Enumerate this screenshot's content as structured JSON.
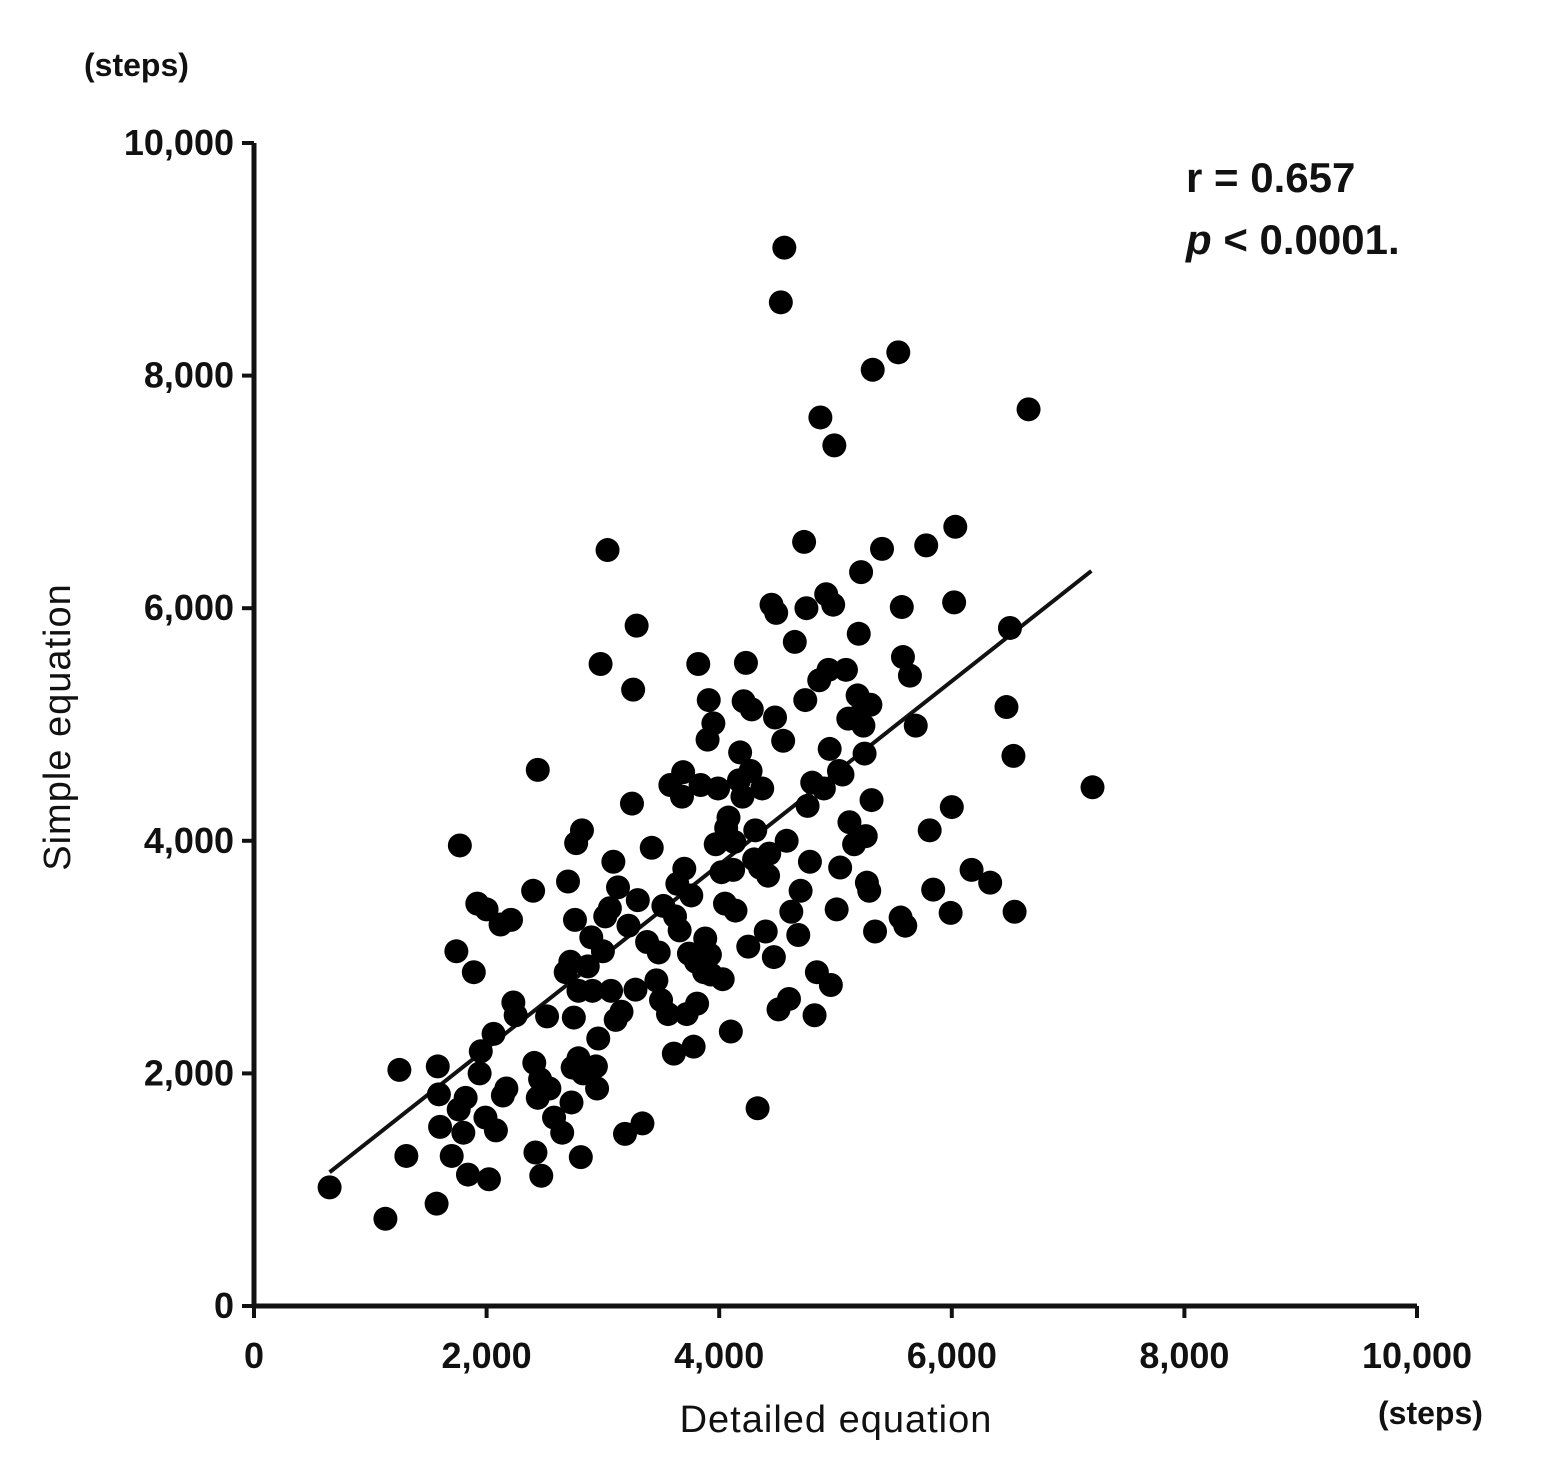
{
  "chart_data": {
    "type": "scatter",
    "title": "",
    "xlabel": "Detailed equation",
    "ylabel": "Simple equation",
    "x_unit": "(steps)",
    "y_unit": "(steps)",
    "xlim": [
      0,
      10000
    ],
    "ylim": [
      0,
      10000
    ],
    "x_ticks": [
      0,
      2000,
      4000,
      6000,
      8000,
      10000
    ],
    "y_ticks": [
      0,
      2000,
      4000,
      6000,
      8000,
      10000
    ],
    "x_tick_labels": [
      "0",
      "2,000",
      "4,000",
      "6,000",
      "8,000",
      "10,000"
    ],
    "y_tick_labels": [
      "0",
      "2,000",
      "4,000",
      "6,000",
      "8,000",
      "10,000"
    ],
    "grid": false,
    "legend": "none",
    "point_color": "#000000",
    "annotation": {
      "r_text": "r = 0.657",
      "p_symbol": "p",
      "p_text": " < 0.0001."
    },
    "regression_line": {
      "x": [
        650,
        7200
      ],
      "y": [
        1150,
        6320
      ]
    },
    "points": [
      [
        650,
        1020
      ],
      [
        1130,
        750
      ],
      [
        1250,
        2030
      ],
      [
        1310,
        1290
      ],
      [
        1570,
        880
      ],
      [
        1580,
        2060
      ],
      [
        1590,
        1820
      ],
      [
        1600,
        1540
      ],
      [
        1700,
        1290
      ],
      [
        1740,
        3050
      ],
      [
        1760,
        1690
      ],
      [
        1770,
        3960
      ],
      [
        1800,
        1490
      ],
      [
        1820,
        1790
      ],
      [
        1840,
        1130
      ],
      [
        1890,
        2870
      ],
      [
        1920,
        3460
      ],
      [
        1940,
        2000
      ],
      [
        1950,
        2190
      ],
      [
        1990,
        1620
      ],
      [
        2000,
        3410
      ],
      [
        2020,
        1090
      ],
      [
        2060,
        2340
      ],
      [
        2080,
        1510
      ],
      [
        2120,
        3280
      ],
      [
        2140,
        1810
      ],
      [
        2170,
        1870
      ],
      [
        2210,
        3320
      ],
      [
        2230,
        2610
      ],
      [
        2250,
        2500
      ],
      [
        2400,
        3570
      ],
      [
        2410,
        2090
      ],
      [
        2420,
        1320
      ],
      [
        2440,
        1790
      ],
      [
        2440,
        4610
      ],
      [
        2460,
        1950
      ],
      [
        2470,
        1120
      ],
      [
        2520,
        2490
      ],
      [
        2540,
        1870
      ],
      [
        2580,
        1620
      ],
      [
        2650,
        1490
      ],
      [
        2680,
        2870
      ],
      [
        2700,
        3650
      ],
      [
        2720,
        2960
      ],
      [
        2730,
        1750
      ],
      [
        2740,
        2050
      ],
      [
        2750,
        2480
      ],
      [
        2760,
        3320
      ],
      [
        2770,
        3980
      ],
      [
        2790,
        2710
      ],
      [
        2790,
        2130
      ],
      [
        2810,
        1280
      ],
      [
        2820,
        4090
      ],
      [
        2830,
        2000
      ],
      [
        2870,
        2920
      ],
      [
        2900,
        3170
      ],
      [
        2910,
        2710
      ],
      [
        2940,
        2060
      ],
      [
        2950,
        1870
      ],
      [
        2960,
        2300
      ],
      [
        2980,
        5520
      ],
      [
        3000,
        3050
      ],
      [
        3020,
        3350
      ],
      [
        3040,
        6500
      ],
      [
        3060,
        3420
      ],
      [
        3070,
        2710
      ],
      [
        3090,
        3820
      ],
      [
        3110,
        2460
      ],
      [
        3130,
        3600
      ],
      [
        3160,
        2530
      ],
      [
        3190,
        1480
      ],
      [
        3220,
        3270
      ],
      [
        3250,
        4320
      ],
      [
        3260,
        5300
      ],
      [
        3280,
        2720
      ],
      [
        3290,
        5850
      ],
      [
        3300,
        3490
      ],
      [
        3340,
        1570
      ],
      [
        3380,
        3130
      ],
      [
        3420,
        3940
      ],
      [
        3460,
        2800
      ],
      [
        3480,
        3040
      ],
      [
        3500,
        2630
      ],
      [
        3520,
        3440
      ],
      [
        3560,
        2510
      ],
      [
        3580,
        4480
      ],
      [
        3610,
        2170
      ],
      [
        3620,
        3350
      ],
      [
        3640,
        3630
      ],
      [
        3660,
        3230
      ],
      [
        3680,
        4380
      ],
      [
        3690,
        4590
      ],
      [
        3700,
        3760
      ],
      [
        3720,
        2510
      ],
      [
        3740,
        3030
      ],
      [
        3760,
        3530
      ],
      [
        3780,
        2230
      ],
      [
        3800,
        2960
      ],
      [
        3810,
        2600
      ],
      [
        3820,
        5520
      ],
      [
        3840,
        4480
      ],
      [
        3870,
        2870
      ],
      [
        3880,
        3160
      ],
      [
        3900,
        4870
      ],
      [
        3910,
        5210
      ],
      [
        3920,
        3020
      ],
      [
        3930,
        2850
      ],
      [
        3950,
        5010
      ],
      [
        3970,
        3970
      ],
      [
        3990,
        4450
      ],
      [
        4020,
        3730
      ],
      [
        4030,
        2810
      ],
      [
        4050,
        3460
      ],
      [
        4060,
        4110
      ],
      [
        4080,
        4200
      ],
      [
        4100,
        2360
      ],
      [
        4120,
        3750
      ],
      [
        4130,
        3990
      ],
      [
        4140,
        3400
      ],
      [
        4170,
        4520
      ],
      [
        4180,
        4760
      ],
      [
        4200,
        4380
      ],
      [
        4210,
        5200
      ],
      [
        4230,
        5530
      ],
      [
        4250,
        3090
      ],
      [
        4270,
        4600
      ],
      [
        4280,
        5130
      ],
      [
        4300,
        3840
      ],
      [
        4310,
        4090
      ],
      [
        4330,
        1700
      ],
      [
        4350,
        3770
      ],
      [
        4370,
        4450
      ],
      [
        4400,
        3220
      ],
      [
        4420,
        3700
      ],
      [
        4430,
        3890
      ],
      [
        4450,
        6030
      ],
      [
        4470,
        3000
      ],
      [
        4480,
        5060
      ],
      [
        4490,
        5960
      ],
      [
        4510,
        2550
      ],
      [
        4530,
        8630
      ],
      [
        4550,
        4860
      ],
      [
        4560,
        9100
      ],
      [
        4580,
        4000
      ],
      [
        4600,
        2640
      ],
      [
        4620,
        3390
      ],
      [
        4650,
        5710
      ],
      [
        4680,
        3190
      ],
      [
        4700,
        3570
      ],
      [
        4730,
        6570
      ],
      [
        4740,
        5210
      ],
      [
        4750,
        6000
      ],
      [
        4760,
        4300
      ],
      [
        4780,
        3820
      ],
      [
        4800,
        4500
      ],
      [
        4820,
        2500
      ],
      [
        4840,
        2870
      ],
      [
        4860,
        5380
      ],
      [
        4870,
        7640
      ],
      [
        4900,
        4450
      ],
      [
        4920,
        6120
      ],
      [
        4940,
        5470
      ],
      [
        4950,
        4790
      ],
      [
        4960,
        2760
      ],
      [
        4980,
        6030
      ],
      [
        4990,
        7400
      ],
      [
        5010,
        3410
      ],
      [
        5030,
        4600
      ],
      [
        5040,
        3770
      ],
      [
        5060,
        4570
      ],
      [
        5090,
        5470
      ],
      [
        5110,
        5050
      ],
      [
        5120,
        4160
      ],
      [
        5160,
        3970
      ],
      [
        5180,
        5060
      ],
      [
        5190,
        5250
      ],
      [
        5200,
        5780
      ],
      [
        5220,
        6310
      ],
      [
        5240,
        4990
      ],
      [
        5250,
        4750
      ],
      [
        5260,
        4040
      ],
      [
        5270,
        3640
      ],
      [
        5290,
        3570
      ],
      [
        5300,
        5170
      ],
      [
        5310,
        4350
      ],
      [
        5320,
        8050
      ],
      [
        5340,
        3220
      ],
      [
        5400,
        6510
      ],
      [
        5540,
        8200
      ],
      [
        5560,
        3340
      ],
      [
        5570,
        6010
      ],
      [
        5580,
        5580
      ],
      [
        5600,
        3270
      ],
      [
        5640,
        5420
      ],
      [
        5690,
        4990
      ],
      [
        5780,
        6540
      ],
      [
        5810,
        4090
      ],
      [
        5840,
        3580
      ],
      [
        5990,
        3380
      ],
      [
        6000,
        4290
      ],
      [
        6020,
        6050
      ],
      [
        6030,
        6700
      ],
      [
        6170,
        3750
      ],
      [
        6330,
        3640
      ],
      [
        6470,
        5150
      ],
      [
        6500,
        5830
      ],
      [
        6530,
        4730
      ],
      [
        6540,
        3390
      ],
      [
        6660,
        7710
      ],
      [
        7210,
        4460
      ]
    ]
  }
}
